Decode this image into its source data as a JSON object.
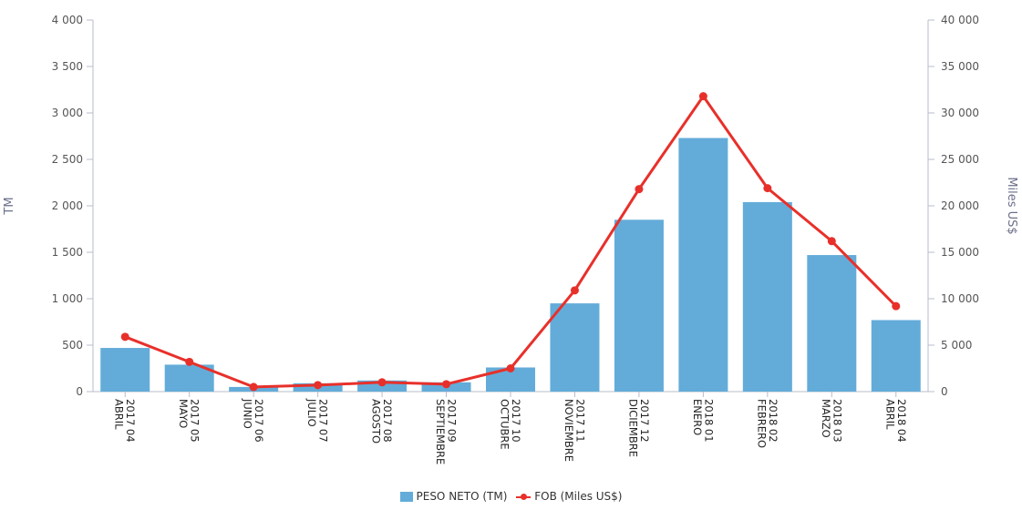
{
  "chart_data": {
    "type": "bar+line",
    "categories": [
      [
        "2017 04",
        "ABRIL"
      ],
      [
        "2017 05",
        "MAYO"
      ],
      [
        "2017 06",
        "JUNIO"
      ],
      [
        "2017 07",
        "JULIO"
      ],
      [
        "2017 08",
        "AGOSTO"
      ],
      [
        "2017 09",
        "SEPTIEMBRE"
      ],
      [
        "2017 10",
        "OCTUBRE"
      ],
      [
        "2017 11",
        "NOVIEMBRE"
      ],
      [
        "2017 12",
        "DICIEMBRE"
      ],
      [
        "2018 01",
        "ENERO"
      ],
      [
        "2018 02",
        "FEBRERO"
      ],
      [
        "2018 03",
        "MARZO"
      ],
      [
        "2018 04",
        "ABRIL"
      ]
    ],
    "series": [
      {
        "name": "PESO NETO (TM)",
        "type": "bar",
        "axis": "left",
        "color": "#63acd9",
        "values": [
          470,
          290,
          50,
          90,
          120,
          100,
          260,
          950,
          1850,
          2730,
          2040,
          1470,
          770
        ]
      },
      {
        "name": "FOB (Miles US$)",
        "type": "line",
        "axis": "right",
        "color": "#e8302a",
        "values": [
          5900,
          3200,
          500,
          700,
          1000,
          800,
          2500,
          10900,
          21800,
          31800,
          21900,
          16200,
          9200
        ]
      }
    ],
    "ylabel_left": "TM",
    "ylabel_right": "Miles US$",
    "ylim_left": [
      0,
      4000
    ],
    "ylim_right": [
      0,
      40000
    ],
    "yticks_left": [
      "0",
      "500",
      "1 000",
      "1 500",
      "2 000",
      "2 500",
      "3 000",
      "3 500",
      "4 000"
    ],
    "yticks_right": [
      "0",
      "5 000",
      "10 000",
      "15 000",
      "20 000",
      "25 000",
      "30 000",
      "35 000",
      "40 000"
    ],
    "grid": false,
    "legend_position": "bottom-center"
  }
}
